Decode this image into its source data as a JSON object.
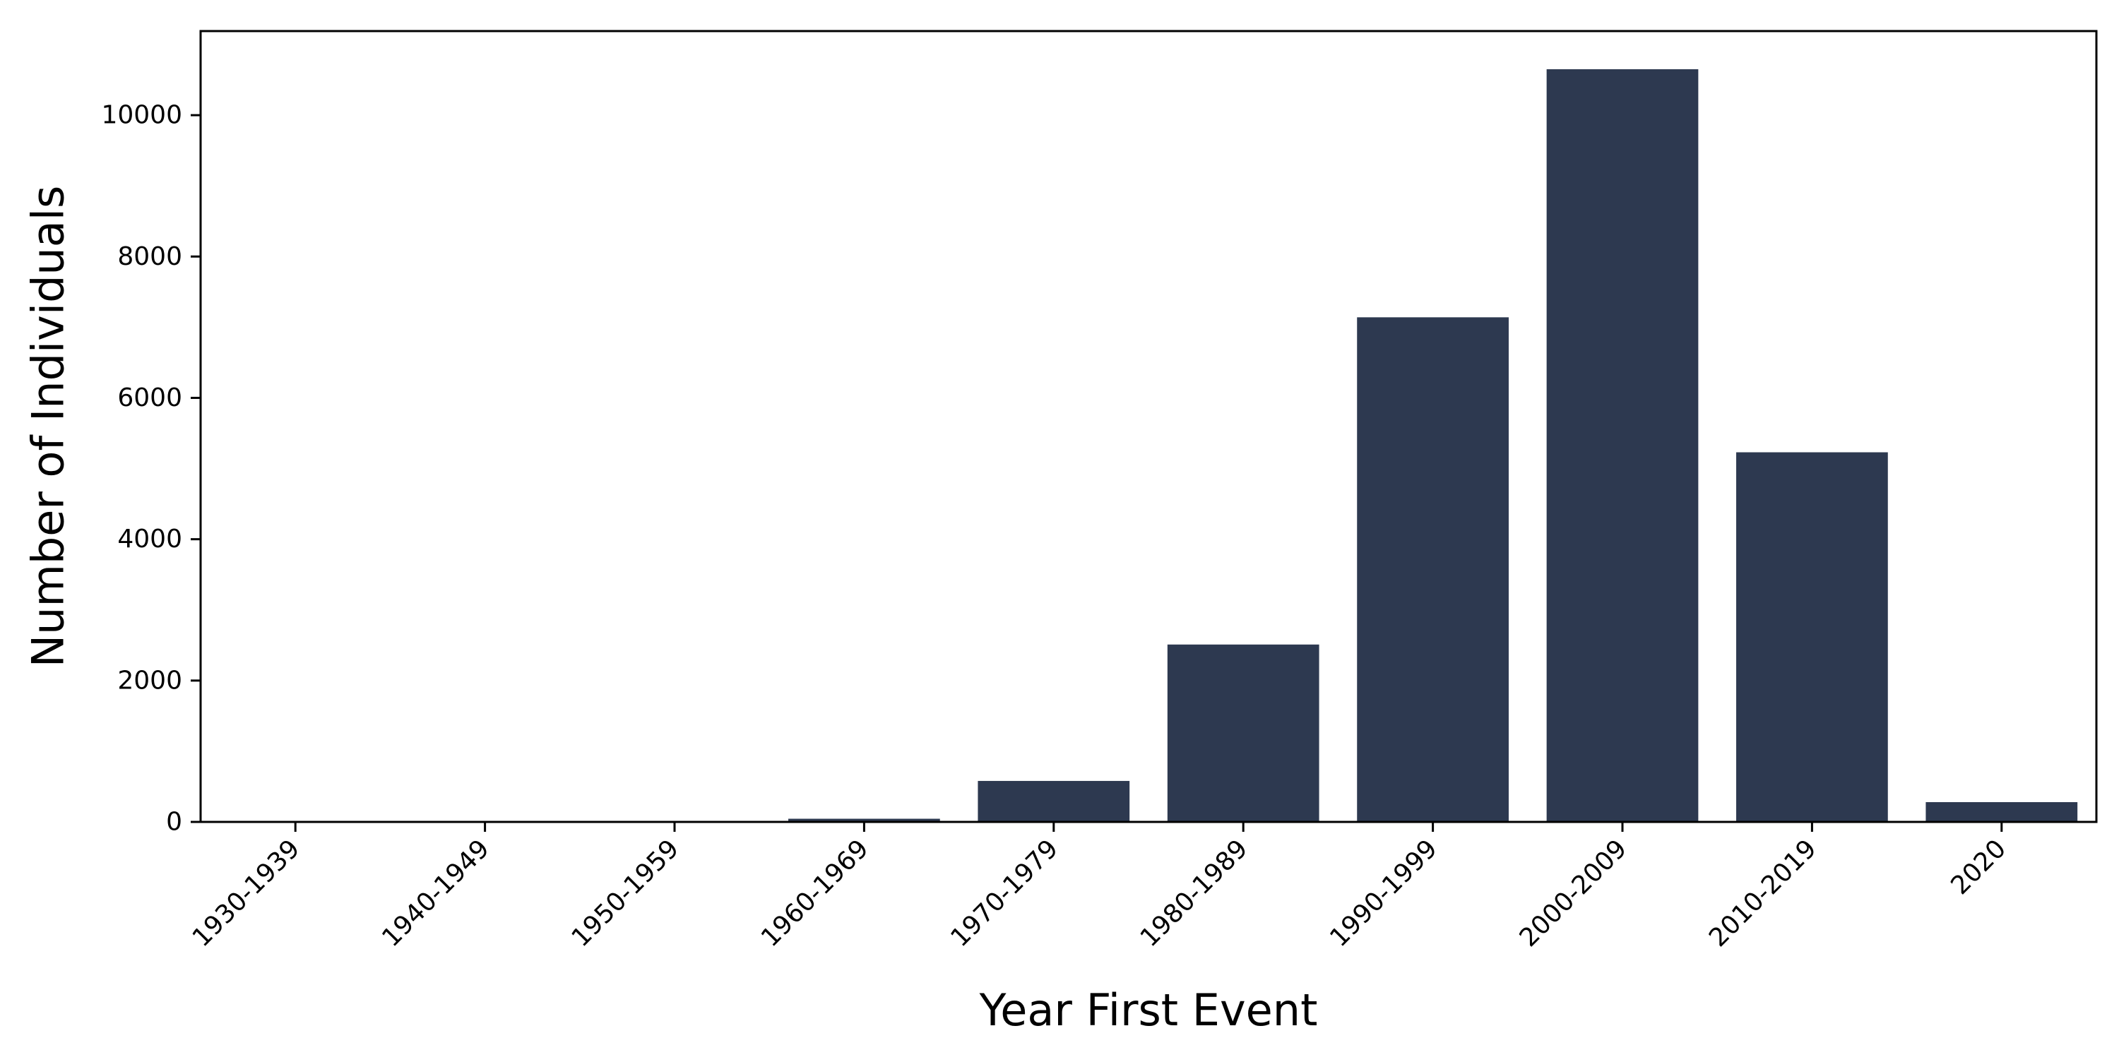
{
  "chart_data": {
    "type": "bar",
    "categories": [
      "1930-1939",
      "1940-1949",
      "1950-1959",
      "1960-1969",
      "1970-1979",
      "1980-1989",
      "1990-1999",
      "2000-2009",
      "2010-2019",
      "2020"
    ],
    "values": [
      2,
      3,
      5,
      45,
      580,
      2510,
      7140,
      10650,
      5230,
      280
    ],
    "xlabel": "Year First Event",
    "ylabel": "Number of Individuals",
    "yticks": [
      0,
      2000,
      4000,
      6000,
      8000,
      10000
    ],
    "ylim": [
      0,
      11190
    ],
    "grid": false,
    "legend": "none",
    "colors": {
      "bar": "#2d3950",
      "axis": "#000000",
      "background": "#ffffff"
    }
  }
}
